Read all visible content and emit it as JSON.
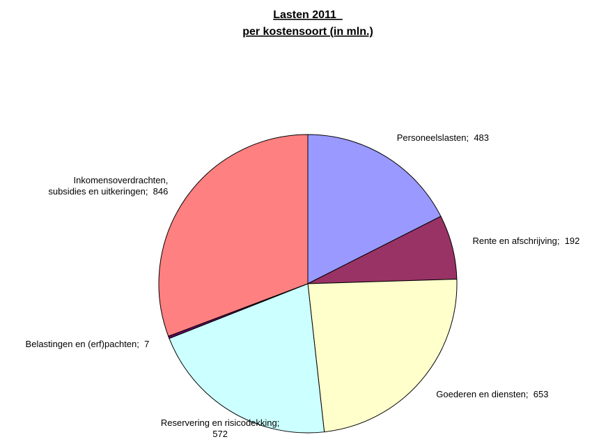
{
  "chart_data": {
    "type": "pie",
    "title": [
      "Lasten 2011  ",
      "per kostensoort (in mln.)"
    ],
    "values": [
      483,
      192,
      653,
      572,
      7,
      846
    ],
    "value_labels": [
      "Personeelslasten;  483",
      "Rente en afschrijving;  192",
      "Goederen en diensten;  653",
      "Reservering en risicodekking;\n572",
      "Belastingen en (erf)pachten;  7",
      "Inkomensoverdrachten,\nsubsidies en uitkeringen;  846"
    ],
    "colors": [
      "#9999FF",
      "#993366",
      "#FFFFCC",
      "#CCFFFF",
      "#660066",
      "#FF8080"
    ],
    "start_angle": 0,
    "direction": "clockwise"
  }
}
